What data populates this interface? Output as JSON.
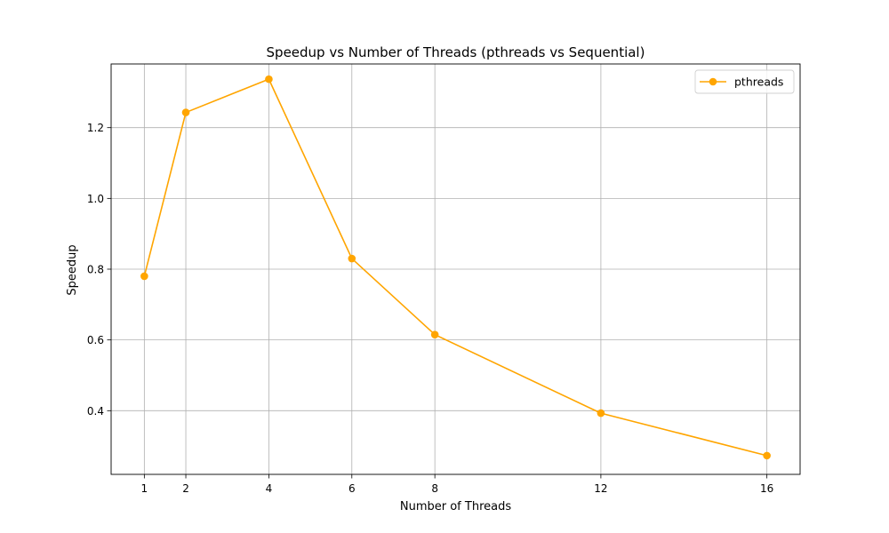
{
  "chart_data": {
    "type": "line",
    "title": "Speedup vs Number of Threads (pthreads vs Sequential)",
    "xlabel": "Number of Threads",
    "ylabel": "Speedup",
    "xlim": [
      0.2,
      16.8
    ],
    "ylim": [
      0.22,
      1.38
    ],
    "xticks": [
      1,
      2,
      4,
      6,
      8,
      12,
      16
    ],
    "yticks": [
      0.4,
      0.6,
      0.8,
      1.0,
      1.2
    ],
    "ytick_labels": [
      "0.4",
      "0.6",
      "0.8",
      "1.0",
      "1.2"
    ],
    "grid": true,
    "legend_position": "top-right",
    "series": [
      {
        "name": "pthreads",
        "color": "#FFA500",
        "marker": "circle",
        "x": [
          1,
          2,
          4,
          6,
          8,
          12,
          16
        ],
        "y": [
          0.78,
          1.243,
          1.337,
          0.83,
          0.615,
          0.393,
          0.273
        ]
      }
    ]
  }
}
